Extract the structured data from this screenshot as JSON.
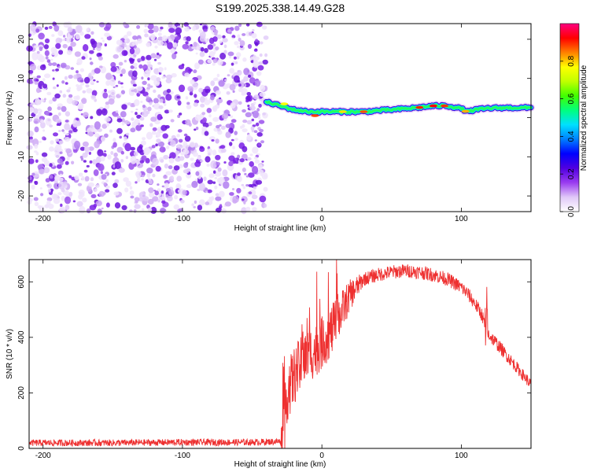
{
  "title": "S199.2025.338.14.49.G28",
  "chart_data": [
    {
      "type": "heatmap",
      "xlabel": "Height of straight line (km)",
      "ylabel": "Frequency (Hz)",
      "xlim": [
        -210,
        150
      ],
      "ylim": [
        -24,
        24
      ],
      "xticks": [
        -200,
        -100,
        0,
        100
      ],
      "yticks": [
        -20,
        -10,
        0,
        10,
        20
      ],
      "colorbar": {
        "label": "Normalized spectral amplitude",
        "range": [
          0,
          1
        ],
        "ticks": [
          0.0,
          0.2,
          0.4,
          0.6,
          0.8
        ],
        "colors": [
          "#ffffff",
          "#e0c8f8",
          "#9a3cf0",
          "#5000e0",
          "#0000ff",
          "#0080ff",
          "#00e0ff",
          "#00ff80",
          "#40ff00",
          "#c0ff00",
          "#ffff00",
          "#ff8000",
          "#ff0000",
          "#ff0080"
        ]
      },
      "noise_region_x": [
        -210,
        -40
      ],
      "signal_ridge": {
        "x": [
          -40,
          -30,
          -20,
          -10,
          0,
          10,
          20,
          30,
          40,
          50,
          60,
          70,
          80,
          90,
          100,
          105,
          110,
          120,
          130,
          140,
          150
        ],
        "frequency": [
          4,
          3,
          2,
          1.5,
          1.5,
          1.5,
          1.5,
          1.5,
          1.8,
          2,
          2.3,
          2.6,
          3,
          3,
          2.3,
          1.5,
          2,
          2.4,
          2.5,
          2.5,
          2.5
        ]
      }
    },
    {
      "type": "line",
      "xlabel": "Height of straight line (km)",
      "ylabel": "SNR (10 * v/v)",
      "xlim": [
        -210,
        150
      ],
      "ylim": [
        0,
        680
      ],
      "xticks": [
        -200,
        -100,
        0,
        100
      ],
      "yticks": [
        0,
        200,
        400,
        600
      ],
      "color": "#ee3030",
      "envelope": {
        "x": [
          -210,
          -150,
          -100,
          -50,
          -30,
          -27,
          -25,
          -20,
          -15,
          -10,
          -5,
          0,
          5,
          10,
          15,
          20,
          25,
          30,
          40,
          50,
          60,
          70,
          80,
          90,
          100,
          105,
          110,
          115,
          118,
          125,
          135,
          145,
          150
        ],
        "y": [
          20,
          20,
          22,
          22,
          25,
          80,
          200,
          260,
          300,
          340,
          350,
          380,
          410,
          450,
          500,
          550,
          580,
          610,
          625,
          635,
          640,
          635,
          625,
          610,
          580,
          555,
          520,
          480,
          420,
          380,
          320,
          260,
          230
        ]
      },
      "noise": {
        "x": [
          -210,
          -30,
          -27,
          10,
          30,
          118,
          150
        ],
        "amplitude": [
          12,
          12,
          110,
          90,
          25,
          25,
          20
        ]
      }
    }
  ]
}
